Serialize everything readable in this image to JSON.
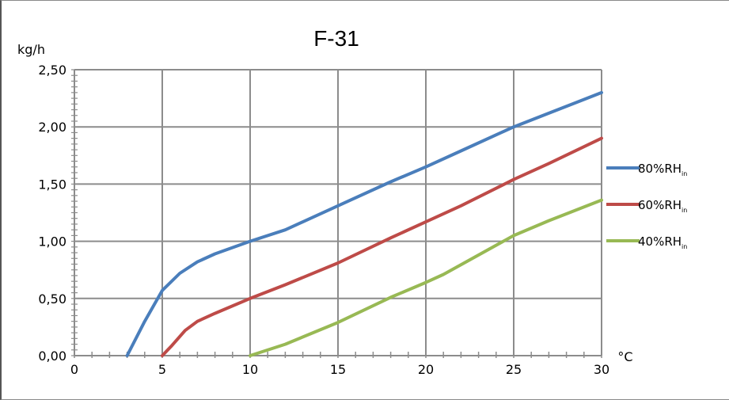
{
  "chart_data": {
    "type": "line",
    "title": "F-31",
    "ylabel": "kg/h",
    "xlabel": "°C",
    "xlim": [
      0,
      30
    ],
    "ylim": [
      0,
      2.5
    ],
    "x_ticks": [
      "0",
      "5",
      "10",
      "15",
      "20",
      "25",
      "30"
    ],
    "y_ticks": [
      "0,00",
      "0,50",
      "1,00",
      "1,50",
      "2,00",
      "2,50"
    ],
    "grid": true,
    "legend_position": "right",
    "series": [
      {
        "name_main": "80%RH",
        "name_sub": "in",
        "color": "#4a7ebb",
        "points": [
          [
            3,
            0
          ],
          [
            4,
            0.3
          ],
          [
            5,
            0.57
          ],
          [
            6,
            0.72
          ],
          [
            7,
            0.82
          ],
          [
            8,
            0.89
          ],
          [
            10,
            1.0
          ],
          [
            12,
            1.1
          ],
          [
            15,
            1.31
          ],
          [
            18,
            1.52
          ],
          [
            20,
            1.65
          ],
          [
            22,
            1.79
          ],
          [
            25,
            2.0
          ],
          [
            27,
            2.12
          ],
          [
            30,
            2.3
          ]
        ]
      },
      {
        "name_main": "60%RH",
        "name_sub": "in",
        "color": "#be4b48",
        "points": [
          [
            5,
            0
          ],
          [
            5.5,
            0.08
          ],
          [
            6.3,
            0.22
          ],
          [
            7,
            0.3
          ],
          [
            8,
            0.37
          ],
          [
            10,
            0.5
          ],
          [
            12,
            0.62
          ],
          [
            15,
            0.81
          ],
          [
            18,
            1.03
          ],
          [
            20,
            1.17
          ],
          [
            22,
            1.31
          ],
          [
            25,
            1.54
          ],
          [
            27,
            1.68
          ],
          [
            30,
            1.9
          ]
        ]
      },
      {
        "name_main": "40%RH",
        "name_sub": "in",
        "color": "#98b954",
        "points": [
          [
            10,
            0
          ],
          [
            12,
            0.1
          ],
          [
            15,
            0.29
          ],
          [
            18,
            0.51
          ],
          [
            20,
            0.64
          ],
          [
            21,
            0.71
          ],
          [
            25,
            1.05
          ],
          [
            27,
            1.18
          ],
          [
            30,
            1.36
          ]
        ]
      }
    ]
  }
}
